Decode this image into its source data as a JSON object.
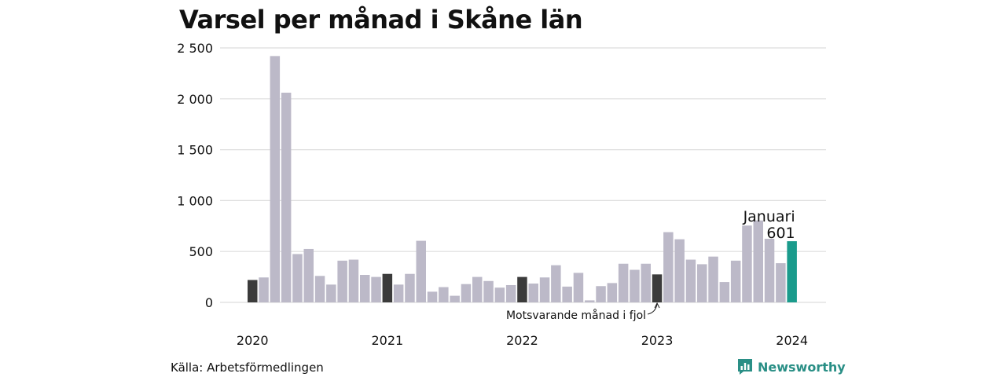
{
  "title": "Varsel per månad i Skåne län",
  "source": "Källa: Arbetsförmedlingen",
  "brand": {
    "name": "Newsworthy",
    "logo_icon": "bar-chart-bubble-icon"
  },
  "colors": {
    "regular": "#bcb9c8",
    "same_month": "#3b3b3b",
    "highlight": "#1a9b8c",
    "brand": "#2a8f86",
    "grid": "#dedede"
  },
  "chart_data": {
    "type": "bar",
    "title": "Varsel per månad i Skåne län",
    "xlabel": "",
    "ylabel": "",
    "ylim": [
      0,
      2500
    ],
    "yticks": [
      0,
      500,
      1000,
      1500,
      2000,
      2500
    ],
    "ytick_labels": [
      "0",
      "500",
      "1 000",
      "1 500",
      "2 000",
      "2 500"
    ],
    "x_labels": [
      {
        "label": "2020",
        "index": 0
      },
      {
        "label": "2021",
        "index": 12
      },
      {
        "label": "2022",
        "index": 24
      },
      {
        "label": "2023",
        "index": 36
      },
      {
        "label": "2024",
        "index": 48
      }
    ],
    "grid": true,
    "values": [
      220,
      245,
      2420,
      2060,
      475,
      525,
      260,
      175,
      410,
      420,
      270,
      250,
      280,
      175,
      280,
      605,
      105,
      150,
      65,
      180,
      250,
      210,
      145,
      170,
      250,
      185,
      245,
      365,
      155,
      290,
      20,
      160,
      190,
      380,
      320,
      380,
      275,
      690,
      620,
      420,
      375,
      450,
      200,
      410,
      755,
      805,
      625,
      385,
      601
    ],
    "same_month_indices": [
      0,
      12,
      24,
      36
    ],
    "highlight_index": 48,
    "annotation_current": {
      "label": "Januari",
      "value": "601"
    },
    "annotation_same_month": "Motsvarande månad i fjol"
  }
}
